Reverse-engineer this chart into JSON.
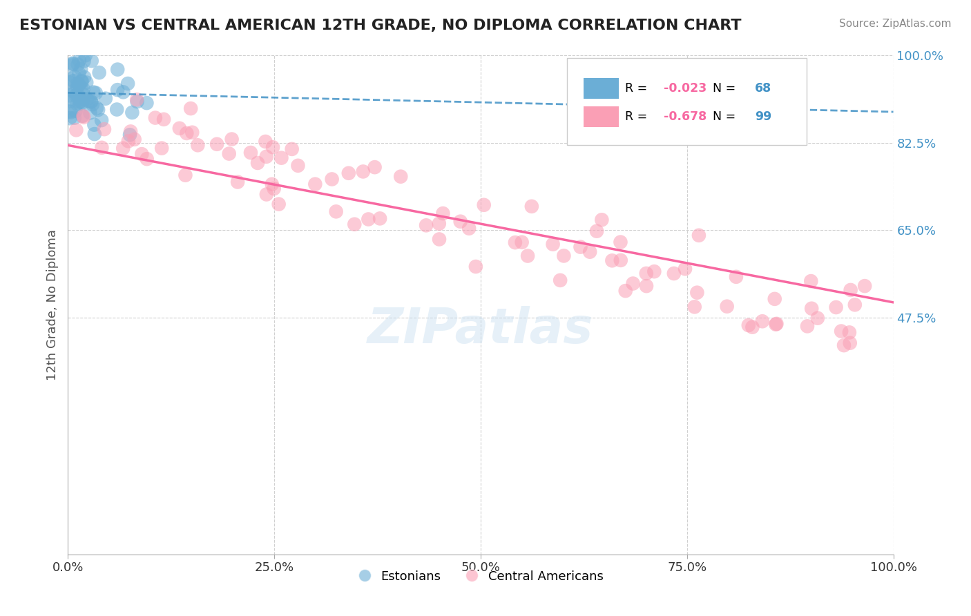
{
  "title": "ESTONIAN VS CENTRAL AMERICAN 12TH GRADE, NO DIPLOMA CORRELATION CHART",
  "source": "Source: ZipAtlas.com",
  "xlabel": "",
  "ylabel": "12th Grade, No Diploma",
  "legend_label_1": "Estonians",
  "legend_label_2": "Central Americans",
  "r1": "-0.023",
  "n1": "68",
  "r2": "-0.678",
  "n2": "99",
  "color_blue": "#6baed6",
  "color_pink": "#fa9fb5",
  "color_blue_line": "#4292c6",
  "color_pink_line": "#f768a1",
  "color_right_labels": "#4292c6",
  "color_r_values": "#f768a1",
  "color_n_values": "#4292c6",
  "watermark": "ZIPatlas",
  "background_color": "#ffffff",
  "grid_color": "#d0d0d0"
}
